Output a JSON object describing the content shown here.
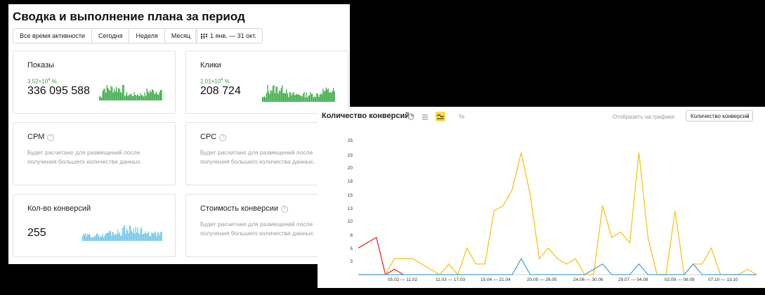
{
  "left_panel": {
    "title": "Сводка и выполнение плана за период",
    "period_tabs": [
      "Все время активности",
      "Сегодня",
      "Неделя",
      "Месяц"
    ],
    "date_range": "1 янв. — 31 окт.",
    "cards": {
      "impressions": {
        "title": "Показы",
        "growth_mantissa": "3.52×10",
        "growth_exp": "4",
        "growth_unit": " %",
        "value": "336 095 588"
      },
      "clicks": {
        "title": "Клики",
        "growth_mantissa": "2.01×10",
        "growth_exp": "4",
        "growth_unit": " %",
        "value": "208 724"
      },
      "cpm": {
        "title": "CPM",
        "desc": "Будет расчитано для размещений после получения большего количества данных."
      },
      "cpc": {
        "title": "CPC",
        "desc": "Будет расчитано для размещений после получения большего количества данных."
      },
      "conversions": {
        "title": "Кол-во конверсий",
        "value": "255"
      },
      "conv_cost": {
        "title": "Стоимость конверсии",
        "desc": "Будет расчитано для размещений после получения большего количества данных."
      }
    },
    "colors": {
      "green_spark": "#3daa4a",
      "blue_spark": "#6ec6ea"
    }
  },
  "right_panel": {
    "title": "Количество конверсий",
    "show_on_chart_label": "Отобразить на графике:",
    "select_value": "Количество конверсий",
    "tools": [
      "pie-icon",
      "bars-icon",
      "line-icon",
      "percent-icon"
    ]
  },
  "chart_data": {
    "type": "line",
    "title": "Количество конверсий",
    "y_ticks": [
      "25",
      "23",
      "20",
      "18",
      "15",
      "13",
      "10",
      "8",
      "5",
      "3"
    ],
    "ylim": [
      0,
      25
    ],
    "x_tick_labels": [
      "05.02 — 11.02",
      "11.03 — 17.03",
      "15.04 — 21.04",
      "20.05 — 26.05",
      "24.06 — 30.06",
      "29.07 — 04.08",
      "02.09 — 08.09",
      "07.10 — 13.10"
    ],
    "series": [
      {
        "color": "#e52b2b",
        "values": [
          5,
          6,
          7,
          0,
          1,
          0
        ]
      },
      {
        "color": "#f5c518",
        "values": [
          0,
          0,
          0,
          0,
          3,
          3,
          3,
          2,
          1,
          0,
          2,
          0,
          5,
          2,
          2,
          12,
          13,
          16,
          23,
          15,
          3,
          5,
          3,
          2,
          3,
          0,
          0,
          13,
          7,
          8,
          6,
          23,
          7,
          0,
          0,
          12,
          0,
          2,
          2,
          5,
          0,
          0,
          0,
          1,
          0
        ]
      },
      {
        "color": "#4aa3df",
        "values": [
          0,
          0,
          0,
          0,
          0,
          0,
          0,
          0,
          0,
          0,
          0,
          0,
          0,
          0,
          0,
          0,
          0,
          0,
          3,
          0,
          0,
          0,
          0,
          0,
          0,
          0,
          1,
          2,
          0,
          0,
          0,
          2,
          0,
          0,
          0,
          0,
          0,
          2,
          0,
          0,
          0,
          0,
          0,
          0,
          0
        ]
      }
    ]
  }
}
